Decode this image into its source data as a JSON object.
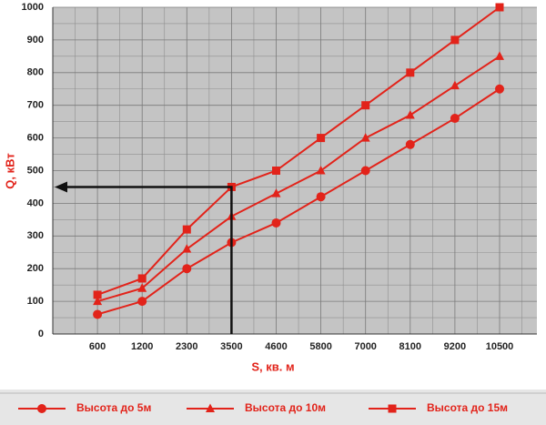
{
  "chart_data": {
    "type": "line",
    "x_label": "S, кв. м",
    "y_label": "Q, кВт",
    "categories": [
      "600",
      "1200",
      "2300",
      "3500",
      "4600",
      "5800",
      "7000",
      "8100",
      "9200",
      "10500"
    ],
    "series": [
      {
        "name": "Высота до 5м",
        "color": "#e2231a",
        "marker": "circle",
        "values": [
          60,
          100,
          200,
          280,
          340,
          420,
          500,
          580,
          660,
          750
        ]
      },
      {
        "name": "Высота до 10м",
        "color": "#e2231a",
        "marker": "triangle",
        "values": [
          100,
          140,
          260,
          360,
          430,
          500,
          600,
          670,
          760,
          850
        ]
      },
      {
        "name": "Высота до 15м",
        "color": "#e2231a",
        "marker": "square",
        "values": [
          120,
          170,
          320,
          450,
          500,
          600,
          700,
          800,
          900,
          1000
        ]
      }
    ],
    "ylim": [
      0,
      1000
    ],
    "yticks": [
      0,
      100,
      200,
      300,
      400,
      500,
      600,
      700,
      800,
      900,
      1000
    ],
    "grid": true,
    "legend": "bottom"
  }
}
